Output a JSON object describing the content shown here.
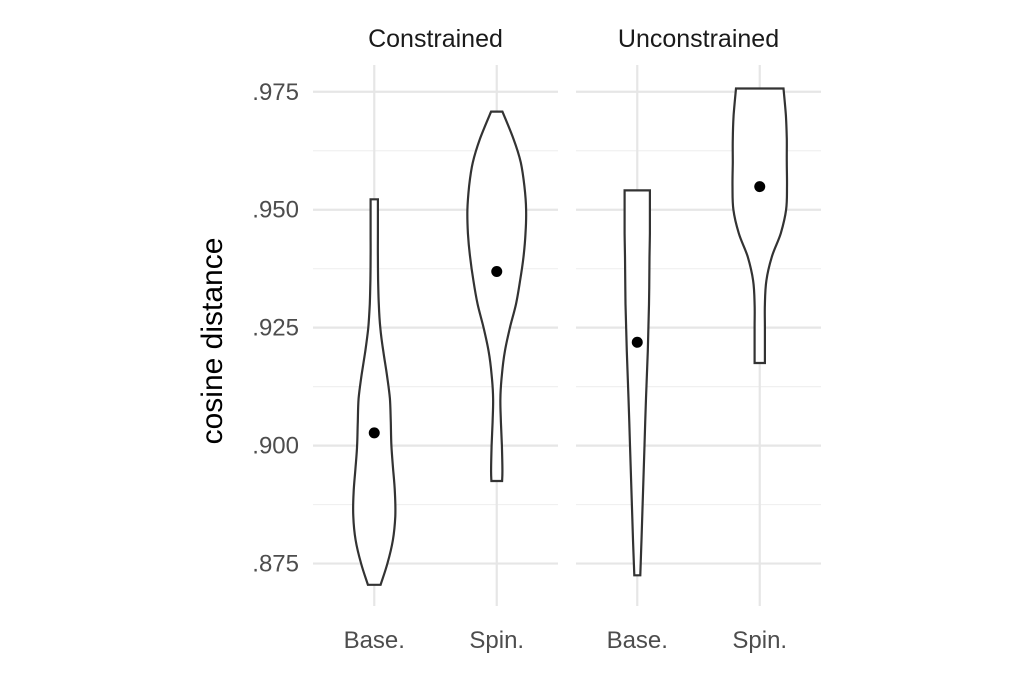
{
  "chart_data": {
    "type": "violin",
    "ylabel": "cosine distance",
    "xlabel": "",
    "ylim": [
      0.8665,
      0.9795
    ],
    "yticks": [
      0.875,
      0.9,
      0.925,
      0.95,
      0.975
    ],
    "ytick_labels": [
      ".875",
      ".900",
      ".925",
      ".950",
      ".975"
    ],
    "grid": true,
    "facets": [
      {
        "title": "Constrained",
        "categories": [
          "Base.",
          "Spin."
        ],
        "violins": [
          {
            "category": "Base.",
            "min": 0.8705,
            "max": 0.9522,
            "mean": 0.9027,
            "profile": [
              [
                0.8705,
                0.21
              ],
              [
                0.875,
                0.44
              ],
              [
                0.88,
                0.62
              ],
              [
                0.885,
                0.7
              ],
              [
                0.89,
                0.69
              ],
              [
                0.895,
                0.63
              ],
              [
                0.9,
                0.57
              ],
              [
                0.905,
                0.55
              ],
              [
                0.91,
                0.52
              ],
              [
                0.915,
                0.42
              ],
              [
                0.92,
                0.3
              ],
              [
                0.925,
                0.2
              ],
              [
                0.93,
                0.15
              ],
              [
                0.935,
                0.13
              ],
              [
                0.94,
                0.12
              ],
              [
                0.945,
                0.12
              ],
              [
                0.9522,
                0.12
              ]
            ]
          },
          {
            "category": "Spin.",
            "min": 0.8925,
            "max": 0.9708,
            "mean": 0.9369,
            "profile": [
              [
                0.8925,
                0.18
              ],
              [
                0.895,
                0.19
              ],
              [
                0.9,
                0.17
              ],
              [
                0.905,
                0.14
              ],
              [
                0.91,
                0.12
              ],
              [
                0.915,
                0.17
              ],
              [
                0.92,
                0.27
              ],
              [
                0.925,
                0.44
              ],
              [
                0.93,
                0.64
              ],
              [
                0.935,
                0.78
              ],
              [
                0.94,
                0.89
              ],
              [
                0.945,
                0.96
              ],
              [
                0.95,
                0.98
              ],
              [
                0.955,
                0.92
              ],
              [
                0.96,
                0.8
              ],
              [
                0.965,
                0.56
              ],
              [
                0.9708,
                0.19
              ]
            ]
          }
        ]
      },
      {
        "title": "Unconstrained",
        "categories": [
          "Base.",
          "Spin."
        ],
        "violins": [
          {
            "category": "Base.",
            "min": 0.8725,
            "max": 0.9541,
            "mean": 0.9219,
            "profile": [
              [
                0.8725,
                0.1
              ],
              [
                0.88,
                0.14
              ],
              [
                0.89,
                0.19
              ],
              [
                0.9,
                0.24
              ],
              [
                0.91,
                0.29
              ],
              [
                0.92,
                0.35
              ],
              [
                0.93,
                0.39
              ],
              [
                0.94,
                0.41
              ],
              [
                0.945,
                0.42
              ],
              [
                0.95,
                0.42
              ],
              [
                0.9541,
                0.42
              ]
            ]
          },
          {
            "category": "Spin.",
            "min": 0.9175,
            "max": 0.9757,
            "mean": 0.9549,
            "profile": [
              [
                0.9175,
                0.17
              ],
              [
                0.925,
                0.17
              ],
              [
                0.93,
                0.17
              ],
              [
                0.935,
                0.22
              ],
              [
                0.94,
                0.4
              ],
              [
                0.945,
                0.7
              ],
              [
                0.95,
                0.88
              ],
              [
                0.955,
                0.91
              ],
              [
                0.96,
                0.9
              ],
              [
                0.965,
                0.9
              ],
              [
                0.97,
                0.87
              ],
              [
                0.9757,
                0.79
              ]
            ]
          }
        ]
      }
    ]
  }
}
